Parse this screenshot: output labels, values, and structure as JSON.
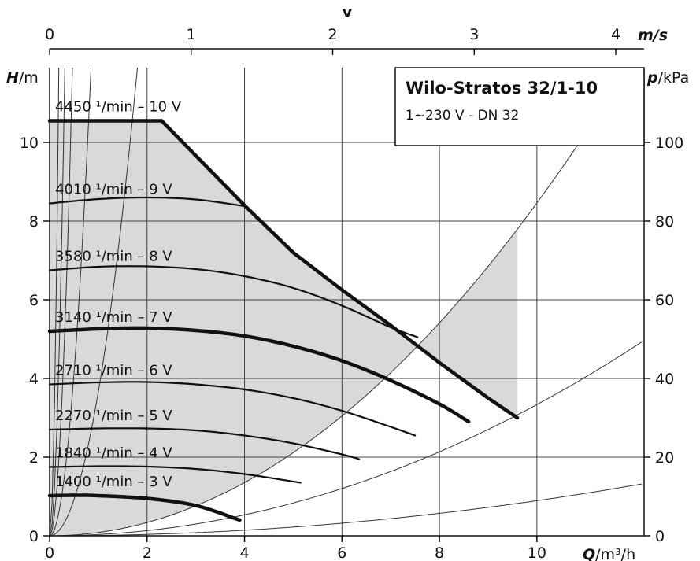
{
  "chart_data": {
    "type": "line",
    "title": "Wilo-Stratos 32/1-10",
    "subtitle": "1~230 V - DN 32",
    "xlabel": {
      "prefix": "Q",
      "suffix": "/m³/h"
    },
    "ylabel": {
      "prefix": "H",
      "suffix": "/m"
    },
    "y2label": {
      "prefix": "p",
      "suffix": "/kPa"
    },
    "topaxis": {
      "name": "v",
      "unit": "m/s"
    },
    "xlim": [
      0,
      12.2
    ],
    "ylim": [
      0,
      11.9
    ],
    "vlim": [
      0,
      4.2
    ],
    "plim": [
      0,
      119
    ],
    "xticks": [
      0,
      2,
      4,
      6,
      8,
      10
    ],
    "yticks": [
      0,
      2,
      4,
      6,
      8,
      10
    ],
    "vticks": [
      0,
      1,
      2,
      3,
      4
    ],
    "pticks": [
      0,
      20,
      40,
      60,
      80,
      100
    ],
    "grid": true,
    "colors": {
      "curve": "#111111",
      "area": "#d9d9d9",
      "grid": "#444444",
      "system": "#333333"
    },
    "series": [
      {
        "label": "4450 ¹/min – 10 V",
        "bold": true,
        "points": [
          [
            0,
            10.55
          ],
          [
            1,
            10.55
          ],
          [
            2,
            10.55
          ],
          [
            2.3,
            10.55
          ]
        ]
      },
      {
        "label": "4010 ¹/min – 9 V",
        "points": [
          [
            0,
            8.45
          ],
          [
            1,
            8.56
          ],
          [
            2,
            8.6
          ],
          [
            3,
            8.55
          ],
          [
            4,
            8.38
          ]
        ]
      },
      {
        "label": "3580 ¹/min – 8 V",
        "points": [
          [
            0,
            6.75
          ],
          [
            1,
            6.84
          ],
          [
            2,
            6.85
          ],
          [
            3,
            6.78
          ],
          [
            4,
            6.6
          ],
          [
            5,
            6.3
          ],
          [
            6,
            5.85
          ],
          [
            7,
            5.3
          ],
          [
            7.55,
            5.05
          ]
        ]
      },
      {
        "label": "3140 ¹/min – 7 V",
        "bold": true,
        "points": [
          [
            0,
            5.2
          ],
          [
            1,
            5.26
          ],
          [
            2,
            5.28
          ],
          [
            3,
            5.22
          ],
          [
            4,
            5.08
          ],
          [
            5,
            4.82
          ],
          [
            6,
            4.45
          ],
          [
            7,
            3.95
          ],
          [
            8,
            3.35
          ],
          [
            8.6,
            2.9
          ]
        ]
      },
      {
        "label": "2710 ¹/min – 6 V",
        "points": [
          [
            0,
            3.85
          ],
          [
            1,
            3.9
          ],
          [
            2,
            3.91
          ],
          [
            3,
            3.85
          ],
          [
            4,
            3.72
          ],
          [
            5,
            3.5
          ],
          [
            6,
            3.18
          ],
          [
            7,
            2.77
          ],
          [
            7.5,
            2.55
          ]
        ]
      },
      {
        "label": "2270 ¹/min – 5 V",
        "points": [
          [
            0,
            2.7
          ],
          [
            1,
            2.73
          ],
          [
            2,
            2.73
          ],
          [
            3,
            2.68
          ],
          [
            4,
            2.55
          ],
          [
            5,
            2.35
          ],
          [
            6,
            2.07
          ],
          [
            6.35,
            1.95
          ]
        ]
      },
      {
        "label": "1840 ¹/min – 4 V",
        "points": [
          [
            0,
            1.75
          ],
          [
            1,
            1.77
          ],
          [
            2,
            1.76
          ],
          [
            3,
            1.7
          ],
          [
            4,
            1.57
          ],
          [
            5,
            1.38
          ],
          [
            5.15,
            1.35
          ]
        ]
      },
      {
        "label": "1400 ¹/min – 3 V",
        "bold": true,
        "points": [
          [
            0,
            1.02
          ],
          [
            0.5,
            1.03
          ],
          [
            1,
            1.02
          ],
          [
            2,
            0.95
          ],
          [
            3,
            0.77
          ],
          [
            3.9,
            0.4
          ]
        ]
      }
    ],
    "max_curve": [
      [
        2.3,
        10.55
      ],
      [
        4,
        8.4
      ],
      [
        5,
        7.2
      ],
      [
        6,
        6.25
      ],
      [
        7,
        5.35
      ],
      [
        8,
        4.4
      ],
      [
        9,
        3.5
      ],
      [
        9.6,
        3.0
      ]
    ],
    "system_curve_factors": [
      700,
      260,
      115,
      35,
      7.8,
      0.18,
      0.071,
      0.019
    ]
  }
}
